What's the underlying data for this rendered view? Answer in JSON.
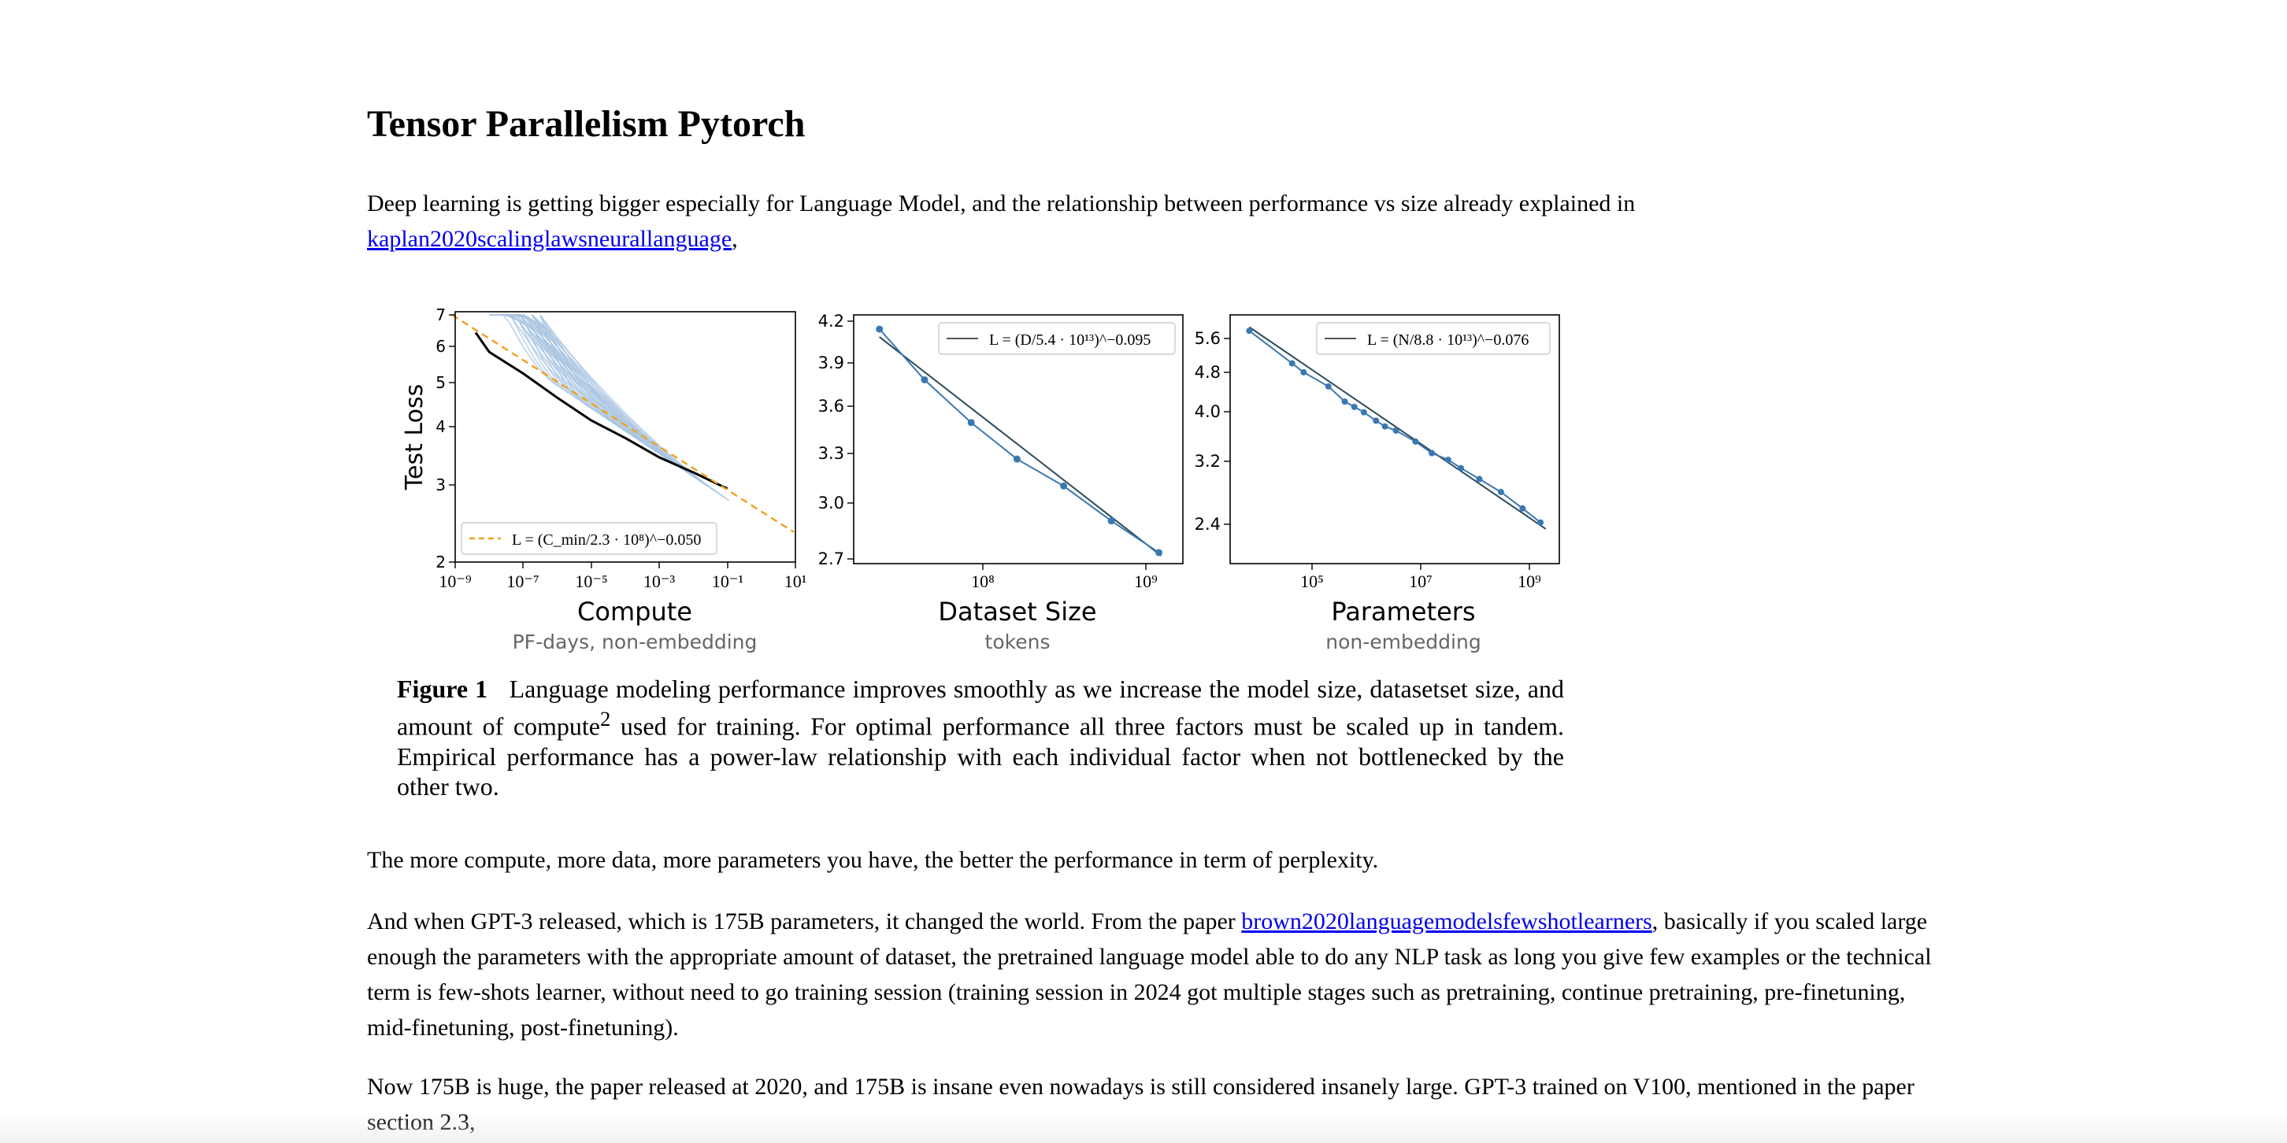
{
  "page": {
    "title": "Tensor Parallelism Pytorch",
    "p1_text": "Deep learning is getting bigger especially for Language Model, and the relationship between performance vs size already explained in",
    "p1_link": "kaplan2020scalinglawsneurallanguage",
    "p1_after": ",",
    "p2": "The more compute, more data, more parameters you have, the better the performance in term of perplexity.",
    "p3_before": "And when GPT-3 released, which is 175B parameters, it changed the world. From the paper",
    "p3_link": "brown2020languagemodelsfewshotlearners",
    "p3_after": ", basically if you scaled large enough the parameters with the appropriate amount of dataset, the pretrained language model able to do any NLP task as long you give few examples or the technical term is few-shots learner, without need to go training session (training session in 2024 got multiple stages such as pretraining, continue pretraining, pre-finetuning, mid-finetuning, post-finetuning).",
    "p4": "Now 175B is huge, the paper released at 2020, and 175B is insane even nowadays is still considered insanely large. GPT-3 trained on V100, mentioned in the paper section 2.3,"
  },
  "caption": {
    "label": "Figure 1",
    "text_a": "Language modeling performance improves smoothly as we increase the model size, datasetset size, and amount of compute",
    "sup": "2",
    "text_b": " used for training.  For optimal performance all three factors must be scaled up in tandem.  Empirical performance has a power-law relationship with each individual factor when not bottlenecked by the other two."
  },
  "chart_data": [
    {
      "type": "line",
      "title": "Compute",
      "subtitle": "PF-days, non-embedding",
      "ylabel": "Test Loss",
      "x_scale": "log",
      "y_scale": "log",
      "xlim": [
        1e-09,
        10
      ],
      "ylim": [
        2,
        7
      ],
      "x_ticks": [
        "10⁻⁹",
        "10⁻⁷",
        "10⁻⁵",
        "10⁻³",
        "10⁻¹",
        "10¹"
      ],
      "y_ticks": [
        "7",
        "6",
        "5",
        "4",
        "3",
        "2"
      ],
      "legend": "L = (C_min/2.3 · 10⁸)^−0.050",
      "legend_position": "bottom-left",
      "fit": {
        "x": [
          1e-09,
          10
        ],
        "y": [
          7.0,
          2.3
        ]
      },
      "frontier": {
        "x": [
          4e-09,
          1e-08,
          1e-07,
          1e-06,
          1e-05,
          0.0001,
          0.001,
          0.01,
          0.1
        ],
        "y": [
          6.4,
          5.8,
          5.2,
          4.6,
          4.1,
          3.75,
          3.4,
          3.15,
          2.9
        ]
      },
      "colors": {
        "fit": "#f0a020",
        "frontier": "#000000",
        "runs": "#a8c4e0"
      }
    },
    {
      "type": "line",
      "title": "Dataset Size",
      "subtitle": "tokens",
      "x_scale": "log",
      "x_ticks": [
        "10⁸",
        "10⁹"
      ],
      "y_ticks": [
        "4.2",
        "3.9",
        "3.6",
        "3.3",
        "3.0",
        "2.7"
      ],
      "ylim": [
        2.7,
        4.2
      ],
      "legend": "L = (D/5.4 · 10¹³)^−0.095",
      "legend_position": "top-right",
      "x": [
        22000000.0,
        43000000.0,
        86000000.0,
        170000000.0,
        340000000.0,
        690000000.0,
        1400000000.0
      ],
      "y": [
        4.15,
        3.83,
        3.56,
        3.33,
        3.16,
        2.94,
        2.74
      ],
      "colors": {
        "points": "#3a78b0",
        "fit": "#2d4a5a"
      }
    },
    {
      "type": "line",
      "title": "Parameters",
      "subtitle": "non-embedding",
      "x_scale": "log",
      "x_ticks": [
        "10⁵",
        "10⁷",
        "10⁹"
      ],
      "y_ticks": [
        "5.6",
        "4.8",
        "4.0",
        "3.2",
        "2.4"
      ],
      "legend": "L = (N/8.8 · 10¹³)^−0.076",
      "legend_position": "top-right",
      "x": [
        7000.0,
        43000.0,
        70000.0,
        200000.0,
        400000.0,
        600000.0,
        900000.0,
        1500000.0,
        2200000.0,
        3500000.0,
        8000000.0,
        16000000.0,
        32000000.0,
        55000000.0,
        120000000.0,
        300000000.0,
        750000000.0,
        1600000000.0
      ],
      "y": [
        5.8,
        5.0,
        4.8,
        4.5,
        4.2,
        4.1,
        4.0,
        3.85,
        3.75,
        3.68,
        3.5,
        3.32,
        3.22,
        3.1,
        2.95,
        2.78,
        2.58,
        2.42
      ],
      "colors": {
        "points": "#3a78b0",
        "fit": "#2d4a5a"
      }
    }
  ]
}
